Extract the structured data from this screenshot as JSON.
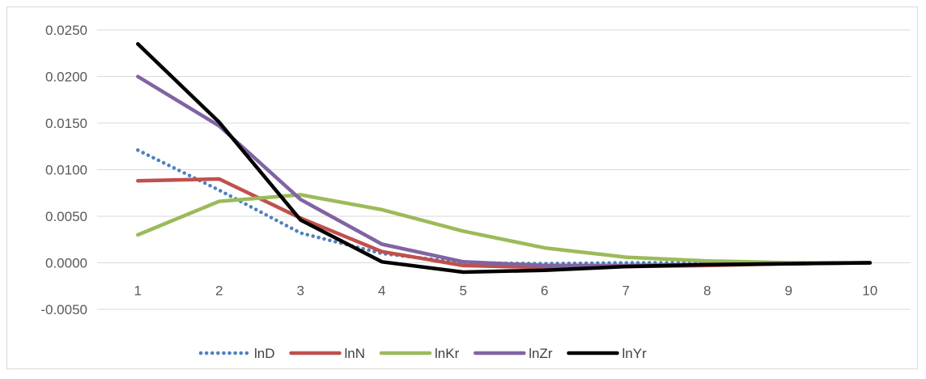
{
  "chart_data": {
    "type": "line",
    "title": "",
    "xlabel": "",
    "ylabel": "",
    "categories": [
      "1",
      "2",
      "3",
      "4",
      "5",
      "6",
      "7",
      "8",
      "9",
      "10"
    ],
    "ylim": [
      -0.005,
      0.025
    ],
    "y_ticks": [
      "0.0250",
      "0.0200",
      "0.0150",
      "0.0100",
      "0.0050",
      "0.0000",
      "-0.0050"
    ],
    "y_tick_values": [
      0.025,
      0.02,
      0.015,
      0.01,
      0.005,
      0.0,
      -0.005
    ],
    "grid": true,
    "legend_position": "bottom",
    "series": [
      {
        "name": "lnD",
        "color": "#4f81bd",
        "style": "dotted",
        "values": [
          0.0121,
          0.0078,
          0.0032,
          0.001,
          0.0,
          -0.0001,
          0.0,
          0.0,
          0.0,
          0.0
        ]
      },
      {
        "name": "lnN",
        "color": "#c0504d",
        "style": "solid",
        "values": [
          0.0088,
          0.009,
          0.0048,
          0.0012,
          -0.0003,
          -0.0005,
          -0.0004,
          -0.0003,
          -0.0001,
          0.0
        ]
      },
      {
        "name": "lnKr",
        "color": "#9bbb59",
        "style": "solid",
        "values": [
          0.003,
          0.0066,
          0.0073,
          0.0057,
          0.0034,
          0.0016,
          0.0006,
          0.0002,
          0.0,
          0.0
        ]
      },
      {
        "name": "lnZr",
        "color": "#8064a2",
        "style": "solid",
        "values": [
          0.02,
          0.0147,
          0.0068,
          0.002,
          0.0001,
          -0.0003,
          -0.0003,
          -0.0002,
          -0.0001,
          0.0
        ]
      },
      {
        "name": "lnYr",
        "color": "#000000",
        "style": "solid",
        "values": [
          0.0235,
          0.0151,
          0.0046,
          0.0001,
          -0.001,
          -0.0008,
          -0.0004,
          -0.0002,
          -0.0001,
          0.0
        ]
      }
    ]
  }
}
